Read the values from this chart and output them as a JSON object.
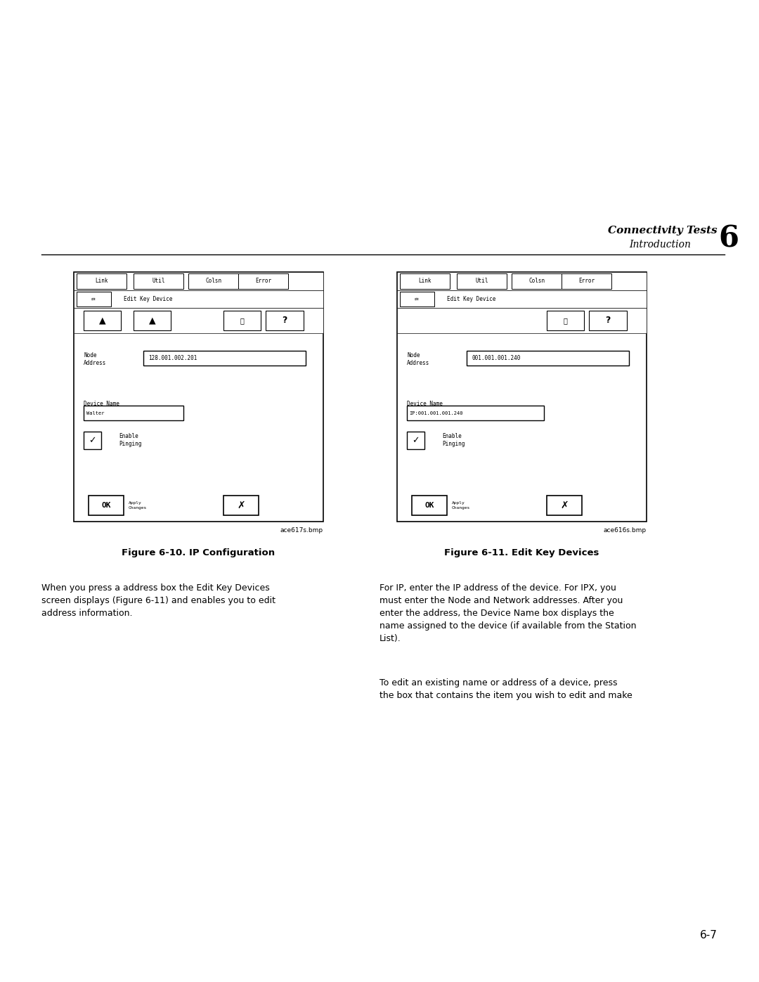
{
  "bg_color": "#ffffff",
  "page_width": 10.8,
  "page_height": 13.97,
  "header_title": "Connectivity Tests",
  "header_subtitle": "Introduction",
  "header_chapter": "6",
  "fig1_caption": "Figure 6-10. IP Configuration",
  "fig2_caption": "Figure 6-11. Edit Key Devices",
  "fig1_filename": "ace617s.bmp",
  "fig2_filename": "ace616s.bmp",
  "left_para": "When you press a address box the Edit Key Devices\nscreen displays (Figure 6-11) and enables you to edit\naddress information.",
  "right_para1": "For IP, enter the IP address of the device. For IPX, you\nmust enter the Node and Network addresses. After you\nenter the address, the Device Name box displays the\nname assigned to the device (if available from the Station\nList).",
  "right_para2": "To edit an existing name or address of a device, press\nthe box that contains the item you wish to edit and make",
  "page_number": "6-7",
  "fig1_node_addr": "128.001.002.201",
  "fig1_device_name": "Walter",
  "fig2_node_addr": "001.001.001.240",
  "fig2_device_name": "IP:001.001.001.240",
  "menu_items": [
    "Link",
    "Util",
    "Colsn",
    "Error"
  ],
  "toolbar_label": "Edit Key Device"
}
